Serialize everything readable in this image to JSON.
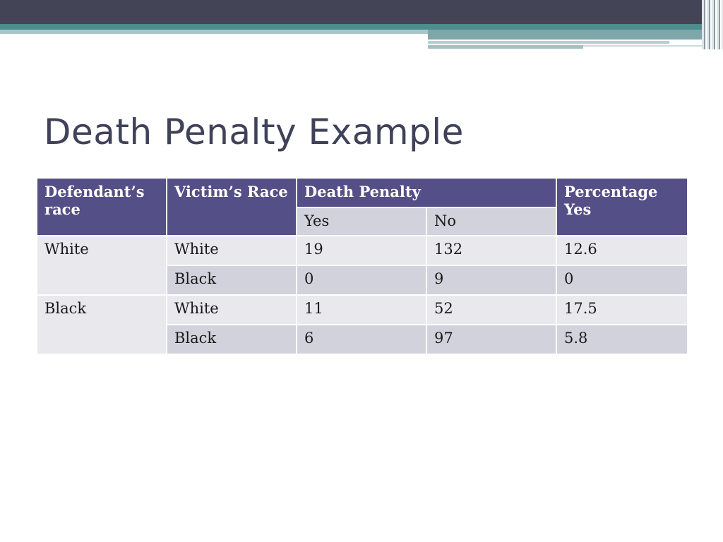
{
  "slide": {
    "title": "Death Penalty Example"
  },
  "table": {
    "headers": {
      "defendant_race": "Defendant’s race",
      "victim_race": "Victim’s Race",
      "death_penalty": "Death Penalty",
      "yes": "Yes",
      "no": "No",
      "percentage_yes": "Percentage Yes"
    },
    "rows": [
      {
        "defendant": "White",
        "victim": "White",
        "yes": "19",
        "no": "132",
        "pct": "12.6"
      },
      {
        "defendant": "",
        "victim": "Black",
        "yes": "0",
        "no": "9",
        "pct": "0"
      },
      {
        "defendant": "Black",
        "victim": "White",
        "yes": "11",
        "no": "52",
        "pct": "17.5"
      },
      {
        "defendant": "",
        "victim": "Black",
        "yes": "6",
        "no": "97",
        "pct": "5.8"
      }
    ]
  },
  "colors": {
    "header_bg": "#544f86",
    "row_light": "#e8e8ed",
    "row_dark": "#d2d2dc",
    "title_color": "#3f4259"
  }
}
